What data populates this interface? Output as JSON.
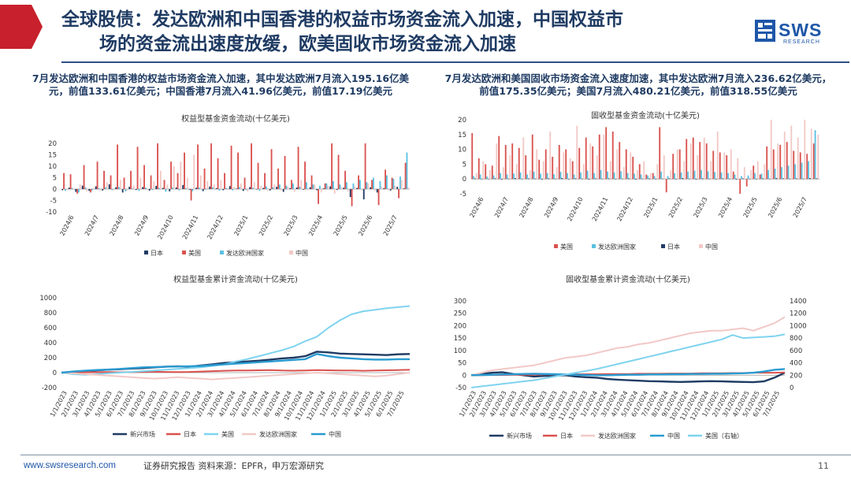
{
  "header": {
    "title_line1": "全球股债：发达欧洲和中国香港的权益市场资金流入加速，中国权益市",
    "title_line2": "场的资金流出速度放缓，欧美固收市场资金流入加速",
    "logo_text": "SWS",
    "logo_subtext": "RESEARCH"
  },
  "subtitles": {
    "left": "7月发达欧洲和中国香港的权益市场资金流入加速，其中发达欧洲7月流入195.16亿美元，前值133.61亿美元；中国香港7月流入41.96亿美元，前值17.19亿美元",
    "right": "7月发达欧洲和美国固收市场资金流入速度加速，其中发达欧洲7月流入236.62亿美元，前值175.35亿美元；美国7月流入480.21亿美元，前值318.55亿美元"
  },
  "footer": {
    "website": "www.swsresearch.com",
    "source": "证券研究报告  资料来源：EPFR，申万宏源研究",
    "page": "11"
  },
  "chart_data": [
    {
      "type": "bar",
      "title": "权益型基金资金流动(十亿美元)",
      "ylim": [
        -10,
        20
      ],
      "yticks": [
        -10,
        -5,
        0,
        5,
        10,
        15,
        20
      ],
      "xticks": [
        "2024/6",
        "2024/7",
        "2024/8",
        "2024/9",
        "2024/10",
        "2024/11",
        "2024/12",
        "2025/1",
        "2025/2",
        "2025/3",
        "2025/4",
        "2025/5",
        "2025/6",
        "2025/7"
      ],
      "legend_position": "bottom",
      "series": [
        {
          "name": "日本",
          "color": "#1f3b63",
          "values": [
            -0.5,
            0.6,
            -1.2,
            1.5,
            -0.8,
            1.2,
            -0.6,
            2.1,
            0.8,
            -1.5,
            1.0,
            -0.4,
            0.9,
            -0.7,
            1.4,
            0.5,
            -1.0,
            0.7,
            1.8,
            -0.3,
            0.6,
            -0.9,
            1.1,
            0.4,
            -0.5,
            1.3,
            0.2,
            -0.8,
            0.9,
            -0.2,
            0.5,
            -0.6,
            1.0,
            -1.2,
            0.4,
            0.7,
            -0.3,
            0.8,
            -0.5,
            0.3,
            1.2,
            -0.4,
            0.6,
            -3.5,
            0.5,
            -4.5,
            0.8,
            -1.5,
            0.4,
            -0.6,
            1.0,
            0.3
          ]
        },
        {
          "name": "美国",
          "color": "#d9524f",
          "values": [
            7.0,
            6.5,
            -2.0,
            10.5,
            -1.5,
            12.0,
            8.0,
            6.0,
            19.5,
            5.0,
            8.0,
            18.5,
            10.5,
            6.0,
            20.0,
            4.0,
            12.0,
            7.0,
            16.0,
            -5.0,
            19.5,
            9.0,
            20.0,
            13.5,
            7.0,
            19.0,
            16.0,
            5.0,
            20.0,
            11.5,
            7.0,
            17.5,
            9.0,
            14.5,
            4.0,
            18.5,
            12.0,
            6.0,
            -6.5,
            2.5,
            20.0,
            15.0,
            8.0,
            -7.5,
            6.0,
            20.0,
            4.0,
            -7.0,
            8.5,
            5.0,
            -4.0,
            11.5
          ]
        },
        {
          "name": "发达欧洲国家",
          "color": "#5bc0e0",
          "values": [
            -0.8,
            0.5,
            -1.5,
            0.7,
            -0.6,
            0.4,
            0.8,
            -0.5,
            0.9,
            -1.0,
            0.3,
            -0.8,
            0.6,
            -0.4,
            0.5,
            -1.2,
            0.7,
            -0.6,
            0.4,
            -0.9,
            0.6,
            -0.3,
            0.8,
            -0.7,
            0.5,
            -0.6,
            0.9,
            -0.4,
            0.6,
            -0.8,
            1.2,
            0.8,
            2.0,
            1.5,
            2.5,
            1.0,
            3.0,
            2.0,
            1.5,
            2.5,
            3.5,
            2.0,
            3.0,
            2.5,
            4.0,
            3.0,
            5.0,
            3.5,
            6.0,
            4.5,
            5.5,
            16.0
          ]
        },
        {
          "name": "中国",
          "color": "#f1c9c6",
          "values": [
            -0.5,
            -0.3,
            2.0,
            -1.0,
            0.6,
            -0.8,
            3.0,
            -0.5,
            4.0,
            -0.7,
            1.5,
            5.0,
            -0.4,
            3.5,
            8.0,
            2.0,
            10.0,
            12.0,
            5.0,
            15.0,
            6.0,
            3.5,
            2.0,
            4.0,
            -0.5,
            1.0,
            2.5,
            -1.0,
            3.0,
            1.5,
            -0.6,
            2.0,
            -0.8,
            1.0,
            -1.2,
            4.0,
            -0.5,
            2.0,
            -1.5,
            1.5,
            -2.0,
            0.8,
            -1.0,
            1.2,
            -0.6,
            2.5,
            -0.8,
            1.0,
            -0.5,
            1.5,
            4.0,
            0.6
          ]
        }
      ]
    },
    {
      "type": "bar",
      "title": "固收型基金资金流动(十亿美元)",
      "ylim": [
        -5,
        20
      ],
      "yticks": [
        -5,
        0,
        5,
        10,
        15,
        20
      ],
      "xticks": [
        "2024/6",
        "2024/7",
        "2024/8",
        "2024/9",
        "2024/10",
        "2024/11",
        "2024/12",
        "2025/1",
        "2025/2",
        "2025/3",
        "2025/4",
        "2025/5",
        "2025/6",
        "2025/7"
      ],
      "legend_position": "bottom",
      "series": [
        {
          "name": "美国",
          "color": "#d9524f",
          "values": [
            15.5,
            7.0,
            5.0,
            4.5,
            14.5,
            11.5,
            12.0,
            10.5,
            8.0,
            15.0,
            6.5,
            10.0,
            7.5,
            11.5,
            10.0,
            6.0,
            10.5,
            14.0,
            11.0,
            15.0,
            17.5,
            16.0,
            12.5,
            10.0,
            7.5,
            5.0,
            1.5,
            2.0,
            17.5,
            -4.5,
            8.5,
            10.0,
            13.5,
            14.0,
            12.5,
            12.0,
            9.5,
            9.0,
            8.0,
            2.5,
            -5.0,
            -2.5,
            4.5,
            1.5,
            11.0,
            10.0,
            11.5,
            12.5,
            9.5,
            9.0,
            8.5,
            12.0
          ]
        },
        {
          "name": "发达欧洲国家",
          "color": "#5bc0e0",
          "values": [
            1.0,
            1.5,
            0.8,
            1.2,
            2.0,
            1.5,
            1.8,
            2.2,
            1.5,
            2.5,
            1.8,
            2.0,
            1.6,
            2.4,
            2.0,
            1.5,
            2.2,
            2.8,
            2.0,
            3.0,
            2.5,
            2.2,
            2.6,
            2.0,
            1.8,
            1.5,
            1.2,
            1.0,
            2.5,
            1.0,
            2.0,
            2.2,
            2.5,
            2.8,
            3.0,
            2.6,
            2.4,
            2.2,
            2.0,
            1.5,
            1.0,
            1.2,
            2.0,
            1.8,
            3.0,
            3.5,
            4.0,
            4.5,
            5.0,
            5.5,
            6.0,
            16.5
          ]
        },
        {
          "name": "日本",
          "color": "#1f3b63",
          "values": [
            0.2,
            -0.1,
            0.1,
            0.2,
            -0.2,
            0.1,
            0.3,
            -0.1,
            0.2,
            0.1,
            -0.2,
            0.2,
            0.1,
            0.3,
            -0.1,
            0.2,
            0.1,
            -0.2,
            0.2,
            0.1,
            0.2,
            -0.1,
            0.1,
            0.2,
            -0.2,
            0.1,
            0.2,
            -0.1,
            0.1,
            0.2,
            -0.1,
            0.3,
            0.1,
            -0.2,
            0.2,
            0.1,
            -0.1,
            0.2,
            0.1,
            -0.2,
            0.2,
            0.1,
            -0.1,
            0.2,
            0.1,
            0.3,
            0.2,
            0.1,
            0.2,
            0.1,
            0.3,
            0.2
          ]
        },
        {
          "name": "中国",
          "color": "#f1c9c6",
          "values": [
            2.0,
            6.0,
            3.0,
            12.0,
            4.0,
            8.0,
            5.0,
            14.0,
            3.0,
            10.0,
            6.0,
            16.0,
            4.0,
            9.0,
            7.0,
            18.0,
            5.0,
            12.0,
            8.0,
            15.0,
            6.0,
            10.0,
            4.0,
            9.0,
            3.0,
            6.0,
            2.0,
            5.0,
            8.0,
            3.0,
            10.0,
            6.0,
            12.0,
            8.0,
            14.0,
            6.0,
            16.0,
            9.0,
            10.0,
            7.0,
            4.0,
            3.0,
            6.0,
            5.0,
            20.0,
            12.0,
            16.0,
            18.0,
            14.0,
            20.0,
            17.0,
            15.0
          ]
        }
      ]
    },
    {
      "type": "line",
      "title": "权益型基金累计资金流动(十亿美元)",
      "ylim": [
        -200,
        1000
      ],
      "yticks": [
        -200,
        0,
        200,
        400,
        600,
        800,
        1000
      ],
      "xticks": [
        "1/1/2023",
        "2/1/2023",
        "3/1/2023",
        "4/1/2023",
        "5/1/2023",
        "6/1/2023",
        "7/1/2023",
        "8/1/2023",
        "9/1/2023",
        "10/1/2023",
        "11/1/2023",
        "12/1/2023",
        "1/1/2024",
        "2/1/2024",
        "3/1/2024",
        "4/1/2024",
        "5/1/2024",
        "6/1/2024",
        "7/1/2024",
        "8/1/2024",
        "9/1/2024",
        "10/1/2024",
        "11/1/2024",
        "12/1/2024",
        "1/1/2025",
        "2/1/2025",
        "3/1/2025",
        "4/1/2025",
        "5/1/2025",
        "6/1/2025",
        "7/1/2025"
      ],
      "legend_position": "bottom",
      "series": [
        {
          "name": "新兴市场",
          "color": "#1f3b63",
          "values": [
            0,
            10,
            20,
            30,
            40,
            45,
            55,
            60,
            70,
            80,
            85,
            80,
            95,
            110,
            130,
            140,
            150,
            160,
            175,
            190,
            200,
            220,
            280,
            270,
            255,
            250,
            245,
            240,
            235,
            245,
            250
          ]
        },
        {
          "name": "日本",
          "color": "#d9524f",
          "values": [
            0,
            2,
            4,
            6,
            8,
            5,
            8,
            10,
            12,
            10,
            8,
            10,
            15,
            20,
            25,
            28,
            30,
            32,
            35,
            28,
            26,
            30,
            35,
            32,
            30,
            28,
            25,
            28,
            32,
            35,
            38
          ]
        },
        {
          "name": "美国",
          "color": "#7fd3ef",
          "values": [
            0,
            -20,
            -30,
            -20,
            -10,
            0,
            10,
            20,
            30,
            40,
            50,
            60,
            70,
            90,
            110,
            150,
            180,
            220,
            260,
            300,
            350,
            420,
            480,
            600,
            700,
            780,
            820,
            840,
            860,
            875,
            890
          ]
        },
        {
          "name": "发达欧洲国家",
          "color": "#f1c9c6",
          "values": [
            0,
            -10,
            -20,
            -30,
            -40,
            -50,
            -60,
            -70,
            -80,
            -70,
            -60,
            -70,
            -80,
            -90,
            -80,
            -70,
            -60,
            -50,
            -40,
            -30,
            -20,
            -10,
            0,
            -10,
            -20,
            -30,
            -40,
            -50,
            -40,
            -20,
            0
          ]
        },
        {
          "name": "中国",
          "color": "#2a9bd1",
          "values": [
            0,
            15,
            25,
            35,
            40,
            50,
            60,
            70,
            75,
            80,
            82,
            85,
            90,
            100,
            110,
            120,
            130,
            140,
            150,
            160,
            170,
            180,
            250,
            220,
            200,
            190,
            180,
            175,
            175,
            180,
            180
          ]
        }
      ]
    },
    {
      "type": "line",
      "title": "固收型基金累计资金流动(十亿美元)",
      "ylim": [
        -50,
        300
      ],
      "yticks": [
        -50,
        0,
        50,
        100,
        150,
        200,
        250,
        300
      ],
      "y2lim": [
        0,
        1400
      ],
      "y2ticks": [
        0,
        200,
        400,
        600,
        800,
        1000,
        1200,
        1400
      ],
      "xticks": [
        "1/1/2023",
        "2/1/2023",
        "3/1/2023",
        "4/1/2023",
        "5/1/2023",
        "6/1/2023",
        "7/1/2023",
        "8/1/2023",
        "9/1/2023",
        "10/1/2023",
        "11/1/2023",
        "12/1/2023",
        "1/1/2024",
        "2/1/2024",
        "3/1/2024",
        "4/1/2024",
        "5/1/2024",
        "6/1/2024",
        "7/1/2024",
        "8/1/2024",
        "9/1/2024",
        "10/1/2024",
        "11/1/2024",
        "12/1/2024",
        "1/1/2025",
        "2/1/2025",
        "3/1/2025",
        "4/1/2025",
        "5/1/2025",
        "6/1/2025",
        "7/1/2025"
      ],
      "legend_position": "bottom",
      "series": [
        {
          "name": "新兴市场",
          "color": "#1f3b63",
          "axis": "left",
          "values": [
            0,
            5,
            10,
            12,
            5,
            0,
            -5,
            -3,
            -2,
            0,
            -5,
            -8,
            -10,
            -15,
            -18,
            -20,
            -22,
            -24,
            -25,
            -26,
            -27,
            -26,
            -25,
            -24,
            -25,
            -26,
            -27,
            -28,
            -25,
            -10,
            10
          ]
        },
        {
          "name": "日本",
          "color": "#d9524f",
          "axis": "left",
          "values": [
            0,
            0,
            1,
            1,
            2,
            2,
            2,
            3,
            3,
            3,
            4,
            4,
            4,
            5,
            5,
            5,
            6,
            6,
            6,
            7,
            7,
            7,
            8,
            8,
            8,
            9,
            9,
            10,
            10,
            10,
            11
          ]
        },
        {
          "name": "发达欧洲国家",
          "color": "#f1c9c6",
          "axis": "left",
          "values": [
            0,
            10,
            20,
            25,
            30,
            35,
            40,
            50,
            60,
            70,
            75,
            80,
            90,
            100,
            110,
            115,
            125,
            130,
            140,
            150,
            160,
            170,
            175,
            180,
            180,
            185,
            190,
            180,
            195,
            210,
            235
          ]
        },
        {
          "name": "中国",
          "color": "#2a9bd1",
          "axis": "left",
          "values": [
            0,
            1,
            2,
            3,
            4,
            5,
            6,
            5,
            4,
            3,
            2,
            1,
            0,
            0,
            1,
            2,
            2,
            3,
            3,
            4,
            4,
            5,
            5,
            6,
            6,
            7,
            8,
            10,
            15,
            22,
            25
          ]
        },
        {
          "name": "美国（右轴）",
          "color": "#7fd3ef",
          "axis": "right",
          "values": [
            0,
            20,
            40,
            60,
            80,
            100,
            120,
            150,
            180,
            210,
            240,
            270,
            300,
            340,
            380,
            420,
            460,
            500,
            540,
            580,
            620,
            660,
            700,
            740,
            780,
            850,
            800,
            810,
            820,
            830,
            860
          ]
        }
      ]
    }
  ]
}
